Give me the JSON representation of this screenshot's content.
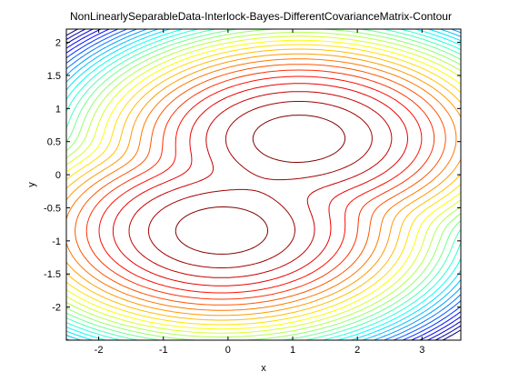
{
  "chart_data": {
    "type": "contour",
    "title": "NonLinearlySeparableData-Interlock-Bayes-DifferentCovarianceMatrix-Contour",
    "xlabel": "x",
    "ylabel": "y",
    "xlim": [
      -2.5,
      3.6
    ],
    "ylim": [
      -2.5,
      2.2
    ],
    "xticks": [
      -2,
      -1,
      0,
      1,
      2,
      3
    ],
    "yticks": [
      -2,
      -1.5,
      -1,
      -0.5,
      0,
      0.5,
      1,
      1.5,
      2
    ],
    "xtick_labels": [
      "-2",
      "-1",
      "0",
      "1",
      "2",
      "3"
    ],
    "ytick_labels": [
      "-2",
      "-1.5",
      "-1",
      "-0.5",
      "0",
      "0.5",
      "1",
      "1.5",
      "2"
    ],
    "grid": false,
    "colormap": "jet",
    "components": [
      {
        "mean": [
          1.1,
          0.55
        ],
        "sx": 0.85,
        "sy": 0.42
      },
      {
        "mean": [
          -0.1,
          -0.85
        ],
        "sx": 0.85,
        "sy": 0.42
      }
    ],
    "levels": 30
  }
}
